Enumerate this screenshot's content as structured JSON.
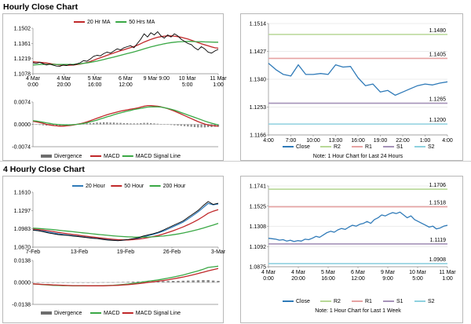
{
  "hourly_title": "Hourly Close Chart",
  "four_hourly_title": "4 Hourly Close Chart",
  "colors": {
    "red": "#c0282a",
    "green": "#3aa845",
    "black": "#000000",
    "blue": "#2f7ab8",
    "r2": "#b8d897",
    "r1": "#e6a3a3",
    "s1": "#a592b8",
    "s2": "#8ed1df",
    "grid": "#d9d9d9"
  },
  "chart_data": [
    {
      "id": "hourly-price",
      "type": "line",
      "x_ticks": [
        "4 Mar\n0:00",
        "4 Mar\n20:00",
        "5 Mar\n16:00",
        "6 Mar\n12:00",
        "9 Mar 9:00",
        "10 Mar\n5:00",
        "11 Mar\n1:00"
      ],
      "y_ticks": [
        "1.1502",
        "1.1361",
        "1.1219",
        "1.1078"
      ],
      "ylim": [
        1.1078,
        1.1502
      ],
      "legend": [
        "20 Hr MA",
        "50 Hrs MA"
      ],
      "series": [
        {
          "name": "Close",
          "color": "#000000",
          "values": [
            1.118,
            1.1175,
            1.1185,
            1.1172,
            1.116,
            1.1168,
            1.1158,
            1.115,
            1.1148,
            1.116,
            1.1155,
            1.1165,
            1.116,
            1.117,
            1.118,
            1.12,
            1.1195,
            1.1215,
            1.124,
            1.125,
            1.1245,
            1.1265,
            1.128,
            1.127,
            1.129,
            1.131,
            1.13,
            1.132,
            1.133,
            1.134,
            1.132,
            1.136,
            1.14,
            1.145,
            1.142,
            1.146,
            1.144,
            1.147,
            1.143,
            1.141,
            1.144,
            1.142,
            1.145,
            1.143,
            1.14,
            1.138,
            1.136,
            1.135,
            1.132,
            1.13,
            1.133,
            1.131,
            1.128,
            1.127,
            1.129,
            1.1305
          ]
        },
        {
          "name": "20 Hr MA",
          "color": "#c0282a",
          "values": [
            1.119,
            1.1188,
            1.1185,
            1.1182,
            1.1178,
            1.1173,
            1.1168,
            1.1164,
            1.116,
            1.1158,
            1.1157,
            1.1158,
            1.116,
            1.1163,
            1.1168,
            1.1175,
            1.1182,
            1.1192,
            1.1204,
            1.1216,
            1.1227,
            1.1238,
            1.125,
            1.1261,
            1.1272,
            1.1283,
            1.1293,
            1.1302,
            1.1312,
            1.1322,
            1.1332,
            1.1344,
            1.1358,
            1.1373,
            1.1386,
            1.1398,
            1.1409,
            1.1418,
            1.1424,
            1.1428,
            1.143,
            1.143,
            1.1428,
            1.1424,
            1.1418,
            1.141,
            1.1401,
            1.1391,
            1.138,
            1.1368,
            1.1358,
            1.1348,
            1.1338,
            1.1328,
            1.132,
            1.1316
          ]
        },
        {
          "name": "50 Hrs MA",
          "color": "#3aa845",
          "values": [
            1.116,
            1.1162,
            1.1164,
            1.1165,
            1.1166,
            1.1166,
            1.1166,
            1.1165,
            1.1164,
            1.1164,
            1.1164,
            1.1165,
            1.1166,
            1.1168,
            1.1171,
            1.1175,
            1.1179,
            1.1184,
            1.119,
            1.1196,
            1.1203,
            1.121,
            1.1218,
            1.1226,
            1.1234,
            1.1242,
            1.125,
            1.1258,
            1.1266,
            1.1274,
            1.1282,
            1.1291,
            1.13,
            1.131,
            1.1319,
            1.1328,
            1.1336,
            1.1344,
            1.1351,
            1.1357,
            1.1363,
            1.1368,
            1.1372,
            1.1375,
            1.1377,
            1.1378,
            1.1379,
            1.1379,
            1.1378,
            1.1377,
            1.1376,
            1.1375,
            1.1374,
            1.1373,
            1.1372,
            1.1372
          ]
        }
      ]
    },
    {
      "id": "hourly-macd",
      "type": "line",
      "y_ticks": [
        "0.0074",
        "0.0000",
        "-0.0074"
      ],
      "ylim": [
        -0.0074,
        0.0074
      ],
      "legend": [
        "Divergence",
        "MACD",
        "MACD Signal Line"
      ],
      "divergence": [
        0.0,
        -0.0001,
        -0.0002,
        -0.0003,
        -0.0004,
        -0.0004,
        -0.0005,
        -0.0005,
        -0.0005,
        -0.0004,
        -0.0003,
        -0.0002,
        -0.0001,
        0.0,
        0.0001,
        0.0002,
        0.0003,
        0.0004,
        0.0005,
        0.0006,
        0.0006,
        0.0007,
        0.0007,
        0.0006,
        0.0006,
        0.0005,
        0.0005,
        0.0004,
        0.0004,
        0.0003,
        0.0003,
        0.0003,
        0.0004,
        0.0005,
        0.0005,
        0.0004,
        0.0003,
        0.0002,
        0.0001,
        0.0,
        -0.0001,
        -0.0002,
        -0.0003,
        -0.0004,
        -0.0005,
        -0.0006,
        -0.0007,
        -0.0008,
        -0.0009,
        -0.001,
        -0.001,
        -0.001,
        -0.0009,
        -0.0009,
        -0.0008,
        -0.0008
      ],
      "series": [
        {
          "name": "MACD",
          "color": "#c0282a",
          "values": [
            0.001,
            0.0008,
            0.0006,
            0.0003,
            0.0,
            -0.0002,
            -0.0004,
            -0.0005,
            -0.0006,
            -0.0006,
            -0.0005,
            -0.0004,
            -0.0002,
            0.0,
            0.0002,
            0.0005,
            0.0008,
            0.0012,
            0.0016,
            0.002,
            0.0024,
            0.0028,
            0.0032,
            0.0035,
            0.0038,
            0.0041,
            0.0044,
            0.0046,
            0.0048,
            0.005,
            0.0052,
            0.0054,
            0.0057,
            0.006,
            0.0062,
            0.0062,
            0.0061,
            0.006,
            0.0058,
            0.0055,
            0.0052,
            0.0048,
            0.0044,
            0.0039,
            0.0034,
            0.0029,
            0.0024,
            0.0019,
            0.0014,
            0.0009,
            0.0005,
            0.0001,
            -0.0002,
            -0.0004,
            -0.0005,
            -0.0006
          ]
        },
        {
          "name": "MACD Signal Line",
          "color": "#3aa845",
          "values": [
            0.0012,
            0.0011,
            0.0009,
            0.0007,
            0.0005,
            0.0003,
            0.0001,
            0.0,
            -0.0001,
            -0.0002,
            -0.0002,
            -0.0002,
            -0.0001,
            0.0,
            0.0001,
            0.0003,
            0.0005,
            0.0008,
            0.0011,
            0.0014,
            0.0018,
            0.0021,
            0.0025,
            0.0028,
            0.0032,
            0.0035,
            0.0038,
            0.0041,
            0.0044,
            0.0046,
            0.0049,
            0.0051,
            0.0053,
            0.0055,
            0.0057,
            0.0058,
            0.0058,
            0.0058,
            0.0057,
            0.0055,
            0.0053,
            0.005,
            0.0047,
            0.0043,
            0.0039,
            0.0035,
            0.0031,
            0.0027,
            0.0023,
            0.0019,
            0.0015,
            0.0011,
            0.0007,
            0.0004,
            0.0001,
            -0.0002
          ]
        }
      ]
    },
    {
      "id": "hourly-pivots",
      "type": "line",
      "x_ticks": [
        "4:00",
        "7:00",
        "10:00",
        "13:00",
        "16:00",
        "19:00",
        "22:00",
        "1:00",
        "4:00"
      ],
      "y_ticks": [
        "1.1514",
        "1.1427",
        "1.1340",
        "1.1253",
        "1.1166"
      ],
      "ylim": [
        1.1166,
        1.1514
      ],
      "levels": [
        {
          "name": "R2",
          "value": 1.148,
          "label": "1.1480"
        },
        {
          "name": "R1",
          "value": 1.1405,
          "label": "1.1405"
        },
        {
          "name": "S1",
          "value": 1.1265,
          "label": "1.1265"
        },
        {
          "name": "S2",
          "value": 1.12,
          "label": "1.1200"
        }
      ],
      "legend": [
        "Close",
        "R2",
        "R1",
        "S1",
        "S2"
      ],
      "note": "Note: 1 Hour Chart for Last 24 Hours",
      "series": [
        {
          "name": "Close",
          "color": "#2f7ab8",
          "values": [
            1.139,
            1.137,
            1.1355,
            1.135,
            1.1385,
            1.1355,
            1.1355,
            1.1358,
            1.1355,
            1.1385,
            1.1378,
            1.138,
            1.1345,
            1.132,
            1.1325,
            1.13,
            1.1305,
            1.129,
            1.13,
            1.131,
            1.132,
            1.1325,
            1.1322,
            1.1328,
            1.1332
          ]
        }
      ]
    },
    {
      "id": "four-hourly-price",
      "type": "line",
      "x_ticks": [
        "7-Feb",
        "13-Feb",
        "19-Feb",
        "26-Feb",
        "3-Mar"
      ],
      "y_ticks": [
        "1.1610",
        "1.1297",
        "1.0983",
        "1.0670"
      ],
      "ylim": [
        1.067,
        1.161
      ],
      "legend": [
        "20 Hour",
        "50 Hour",
        "200 Hour"
      ],
      "series": [
        {
          "name": "Close",
          "color": "#000000",
          "values": [
            1.096,
            1.095,
            1.0935,
            1.0915,
            1.09,
            1.0885,
            1.0875,
            1.087,
            1.086,
            1.085,
            1.084,
            1.083,
            1.082,
            1.0815,
            1.08,
            1.079,
            1.0785,
            1.078,
            1.079,
            1.08,
            1.0815,
            1.083,
            1.086,
            1.088,
            1.09,
            1.0925,
            1.096,
            1.1,
            1.104,
            1.108,
            1.112,
            1.118,
            1.124,
            1.13,
            1.138,
            1.145,
            1.14,
            1.142
          ]
        },
        {
          "name": "20 Hour",
          "color": "#2f7ab8",
          "values": [
            1.0965,
            1.0955,
            1.0943,
            1.0928,
            1.0913,
            1.0898,
            1.0886,
            1.0876,
            1.0866,
            1.0856,
            1.0846,
            1.0836,
            1.0826,
            1.0818,
            1.0808,
            1.0799,
            1.0792,
            1.0787,
            1.0789,
            1.0795,
            1.0806,
            1.0821,
            1.0844,
            1.0867,
            1.0889,
            1.0913,
            1.0944,
            1.0982,
            1.102,
            1.106,
            1.11,
            1.1155,
            1.1214,
            1.1275,
            1.1348,
            1.1418,
            1.1395,
            1.1408
          ]
        },
        {
          "name": "50 Hour",
          "color": "#c0282a",
          "values": [
            1.098,
            1.0972,
            1.0962,
            1.095,
            1.0937,
            1.0923,
            1.091,
            1.0898,
            1.0886,
            1.0875,
            1.0864,
            1.0853,
            1.0842,
            1.0832,
            1.0822,
            1.0812,
            1.0804,
            1.0797,
            1.0794,
            1.0793,
            1.0797,
            1.0805,
            1.0818,
            1.0834,
            1.0851,
            1.087,
            1.0893,
            1.0921,
            1.0951,
            1.0983,
            1.1016,
            1.1054,
            1.1096,
            1.1142,
            1.1194,
            1.125,
            1.1285,
            1.131
          ]
        },
        {
          "name": "200 Hour",
          "color": "#3aa845",
          "values": [
            1.0995,
            1.099,
            1.0984,
            1.0977,
            1.0969,
            1.096,
            1.0951,
            1.0942,
            1.0933,
            1.0924,
            1.0915,
            1.0906,
            1.0897,
            1.0888,
            1.088,
            1.0872,
            1.0864,
            1.0857,
            1.0851,
            1.0846,
            1.0842,
            1.084,
            1.084,
            1.0842,
            1.0846,
            1.0852,
            1.086,
            1.087,
            1.0882,
            1.0896,
            1.0912,
            1.093,
            1.095,
            1.0972,
            1.0996,
            1.1022,
            1.1048,
            1.1075
          ]
        }
      ]
    },
    {
      "id": "four-hourly-macd",
      "type": "line",
      "y_ticks": [
        "0.0138",
        "0.0000",
        "-0.0138"
      ],
      "ylim": [
        -0.0138,
        0.0138
      ],
      "legend": [
        "Divergence",
        "MACD",
        "MACD Signal Line"
      ],
      "divergence": [
        0.0,
        -0.0001,
        -0.0001,
        -0.0002,
        -0.0002,
        -0.0002,
        -0.0002,
        -0.0001,
        -0.0001,
        -0.0001,
        -0.0001,
        0.0,
        0.0,
        0.0,
        0.0001,
        0.0001,
        0.0001,
        0.0002,
        0.0003,
        0.0004,
        0.0005,
        0.0006,
        0.0007,
        0.0007,
        0.0007,
        0.0007,
        0.0008,
        0.0009,
        0.001,
        0.001,
        0.0011,
        0.0012,
        0.0013,
        0.0014,
        0.0015,
        0.0015,
        0.0012,
        0.001
      ],
      "series": [
        {
          "name": "MACD",
          "color": "#3aa845",
          "values": [
            -0.001,
            -0.0012,
            -0.0014,
            -0.0016,
            -0.0018,
            -0.0019,
            -0.002,
            -0.002,
            -0.0021,
            -0.0021,
            -0.0021,
            -0.0021,
            -0.0021,
            -0.002,
            -0.002,
            -0.0019,
            -0.0018,
            -0.0016,
            -0.0013,
            -0.001,
            -0.0006,
            -0.0002,
            0.0003,
            0.0008,
            0.0012,
            0.0016,
            0.0021,
            0.0027,
            0.0033,
            0.004,
            0.0047,
            0.0055,
            0.0064,
            0.0073,
            0.0083,
            0.0094,
            0.0098,
            0.0102
          ]
        },
        {
          "name": "MACD Signal Line",
          "color": "#c0282a",
          "values": [
            -0.0009,
            -0.0011,
            -0.0013,
            -0.0014,
            -0.0016,
            -0.0017,
            -0.0018,
            -0.0019,
            -0.002,
            -0.002,
            -0.002,
            -0.0021,
            -0.0021,
            -0.0021,
            -0.0021,
            -0.002,
            -0.0019,
            -0.0018,
            -0.0016,
            -0.0014,
            -0.0011,
            -0.0008,
            -0.0004,
            0.0,
            0.0004,
            0.0008,
            0.0012,
            0.0017,
            0.0022,
            0.0028,
            0.0034,
            0.0041,
            0.0048,
            0.0056,
            0.0064,
            0.0073,
            0.008,
            0.0087
          ]
        }
      ]
    },
    {
      "id": "four-hourly-pivots",
      "type": "line",
      "x_ticks": [
        "4 Mar\n0:00",
        "4 Mar\n20:00",
        "5 Mar\n16:00",
        "6 Mar\n12:00",
        "9 Mar\n9:00",
        "10 Mar\n5:00",
        "11 Mar\n1:00"
      ],
      "y_ticks": [
        "1.1741",
        "1.1525",
        "1.1308",
        "1.1092",
        "1.0875"
      ],
      "ylim": [
        1.0875,
        1.1741
      ],
      "levels": [
        {
          "name": "R2",
          "value": 1.1706,
          "label": "1.1706"
        },
        {
          "name": "R1",
          "value": 1.1518,
          "label": "1.1518"
        },
        {
          "name": "S1",
          "value": 1.1119,
          "label": "1.1119"
        },
        {
          "name": "S2",
          "value": 1.0908,
          "label": "1.0908"
        }
      ],
      "legend": [
        "Close",
        "R2",
        "R1",
        "S1",
        "S2"
      ],
      "note": "Note: 1 Hour Chart for Last 1 Week",
      "series": [
        {
          "name": "Close",
          "color": "#2f7ab8",
          "values": [
            1.118,
            1.1175,
            1.117,
            1.116,
            1.1165,
            1.115,
            1.1158,
            1.1145,
            1.1155,
            1.115,
            1.117,
            1.1165,
            1.118,
            1.12,
            1.119,
            1.1215,
            1.124,
            1.1255,
            1.1245,
            1.127,
            1.1285,
            1.1275,
            1.13,
            1.132,
            1.131,
            1.133,
            1.134,
            1.136,
            1.134,
            1.138,
            1.14,
            1.143,
            1.142,
            1.144,
            1.1455,
            1.1445,
            1.146,
            1.143,
            1.14,
            1.142,
            1.138,
            1.136,
            1.134,
            1.132,
            1.13,
            1.131,
            1.128,
            1.129,
            1.131,
            1.132
          ]
        }
      ]
    }
  ]
}
